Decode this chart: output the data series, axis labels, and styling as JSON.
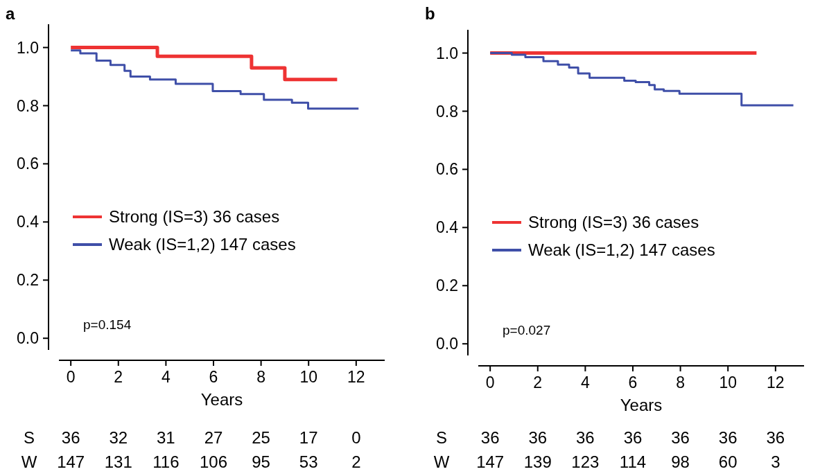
{
  "chart_data": [
    {
      "type": "step",
      "title": "a",
      "xlabel": "Years",
      "xlim": [
        -0.5,
        13.2
      ],
      "ylim": [
        -0.04,
        1.08
      ],
      "xticks": [
        0,
        2,
        4,
        6,
        8,
        10,
        12
      ],
      "yticks": [
        {
          "value": 0,
          "label": "0.0"
        },
        {
          "value": 0.2,
          "label": "0.2"
        },
        {
          "value": 0.4,
          "label": "0.4"
        },
        {
          "value": 0.6,
          "label": "0.6"
        },
        {
          "value": 0.8,
          "label": "0.8"
        },
        {
          "value": 1,
          "label": "1.0"
        }
      ],
      "line_style": "solid",
      "legend": "left",
      "grid": false,
      "annotations": [
        "p=0.154",
        "S 36 32 31 27 25 17 0",
        "W 147 131 116 106 95 53 2"
      ],
      "series": [
        {
          "name": "Strong (IS=3) 36 cases",
          "color": "#ee3333",
          "x": [
            0,
            3.64,
            7.6,
            9.0,
            11.2
          ],
          "values": [
            1.0,
            0.97,
            0.93,
            0.89,
            0.89
          ]
        },
        {
          "name": "Weak (IS=1,2) 147 cases",
          "color": "#3f4fa8",
          "x": [
            0,
            0.4,
            1.08,
            1.67,
            2.26,
            2.51,
            3.33,
            4.41,
            5.97,
            7.14,
            8.12,
            9.3,
            9.98,
            12.1
          ],
          "values": [
            0.99,
            0.98,
            0.955,
            0.94,
            0.92,
            0.9,
            0.89,
            0.875,
            0.85,
            0.84,
            0.82,
            0.81,
            0.79,
            0.79
          ]
        }
      ]
    },
    {
      "type": "step",
      "title": "b",
      "xlabel": "Years",
      "xlim": [
        -0.5,
        13.2
      ],
      "ylim": [
        -0.04,
        1.08
      ],
      "xticks": [
        0,
        2,
        4,
        6,
        8,
        10,
        12
      ],
      "yticks": [
        {
          "value": 0,
          "label": "0.0"
        },
        {
          "value": 0.2,
          "label": "0.2"
        },
        {
          "value": 0.4,
          "label": "0.4"
        },
        {
          "value": 0.6,
          "label": "0.6"
        },
        {
          "value": 0.8,
          "label": "0.8"
        },
        {
          "value": 1,
          "label": "1.0"
        }
      ],
      "line_style": "solid",
      "legend": "left",
      "grid": false,
      "annotations": [
        "p=0.027",
        "S 36 36 36 36 36 36 36",
        "W 147 139 123 114 98 60 3"
      ],
      "series": [
        {
          "name": "Strong (IS=3) 36 cases",
          "color": "#ee3333",
          "x": [
            0,
            11.2
          ],
          "values": [
            1.0,
            1.0
          ]
        },
        {
          "name": "Weak (IS=1,2) 147 cases",
          "color": "#3f4fa8",
          "x": [
            0,
            0.91,
            1.48,
            2.24,
            2.85,
            3.32,
            3.7,
            4.18,
            5.64,
            6.12,
            6.69,
            6.92,
            7.3,
            7.96,
            10.57,
            12.75
          ],
          "values": [
            1.0,
            0.994,
            0.986,
            0.972,
            0.96,
            0.95,
            0.93,
            0.915,
            0.905,
            0.9,
            0.89,
            0.875,
            0.87,
            0.86,
            0.82,
            0.82
          ]
        }
      ]
    }
  ]
}
